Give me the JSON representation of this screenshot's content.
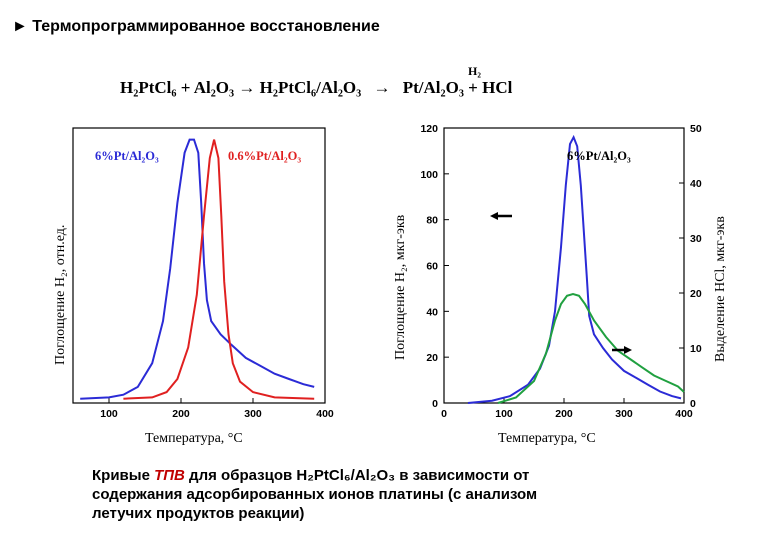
{
  "heading": "► Термопрограммированное восстановление",
  "equation": {
    "left": "H₂PtCl₆ + Al₂O₃ → H₂PtCl₆/Al₂O₃",
    "arrow": "→",
    "over_arrow": "H₂",
    "right": "Pt/Al₂O₃ + HCl"
  },
  "caption": {
    "line1_prefix": "Кривые ",
    "tpv": "ТПВ",
    "line1_suffix": " для образцов H₂PtCl₆/Al₂O₃ в зависимости от",
    "line2": "содержания адсорбированных ионов платины (с анализом",
    "line3": "летучих продуктов реакции)"
  },
  "chart_data": [
    {
      "type": "line",
      "xlabel": "Температура, °С",
      "ylabel": "Поглощение H₂, отн.ед.",
      "xlim": [
        50,
        400
      ],
      "x_ticks": [
        "100",
        "200",
        "300",
        "400"
      ],
      "y_ticks": [],
      "grid": false,
      "series": [
        {
          "name": "6%Pt/Al₂O₃",
          "color": "#2b2bd6",
          "points": [
            [
              60,
              0.5
            ],
            [
              100,
              1
            ],
            [
              120,
              2
            ],
            [
              140,
              5
            ],
            [
              160,
              14
            ],
            [
              175,
              30
            ],
            [
              185,
              50
            ],
            [
              195,
              75
            ],
            [
              205,
              94
            ],
            [
              212,
              99
            ],
            [
              218,
              99
            ],
            [
              224,
              94
            ],
            [
              228,
              75
            ],
            [
              232,
              52
            ],
            [
              236,
              38
            ],
            [
              242,
              30
            ],
            [
              255,
              25
            ],
            [
              270,
              21
            ],
            [
              290,
              16
            ],
            [
              310,
              13
            ],
            [
              330,
              10
            ],
            [
              350,
              8
            ],
            [
              370,
              6
            ],
            [
              385,
              5
            ]
          ]
        },
        {
          "name": "0.6%Pt/Al₂O₃",
          "color": "#e02020",
          "points": [
            [
              120,
              0.5
            ],
            [
              160,
              1
            ],
            [
              180,
              3
            ],
            [
              195,
              8
            ],
            [
              210,
              20
            ],
            [
              222,
              40
            ],
            [
              232,
              70
            ],
            [
              240,
              92
            ],
            [
              246,
              99
            ],
            [
              252,
              92
            ],
            [
              256,
              70
            ],
            [
              260,
              45
            ],
            [
              266,
              25
            ],
            [
              272,
              14
            ],
            [
              282,
              7
            ],
            [
              300,
              3
            ],
            [
              330,
              1
            ],
            [
              385,
              0.5
            ]
          ]
        }
      ]
    },
    {
      "type": "line",
      "xlabel": "Температура, °С",
      "ylabel": "Поглощение H₂, мкг-экв",
      "y2label": "Выделение HCl, мкг-экв",
      "xlim": [
        0,
        400
      ],
      "ylim": [
        0,
        120
      ],
      "y2lim": [
        0,
        50
      ],
      "x_ticks": [
        "0",
        "100",
        "200",
        "300",
        "400"
      ],
      "y_ticks": [
        "0",
        "20",
        "40",
        "60",
        "80",
        "100",
        "120"
      ],
      "y2_ticks": [
        "0",
        "10",
        "20",
        "30",
        "40",
        "50"
      ],
      "grid": false,
      "legend": "6%Pt/Al₂O₃",
      "series": [
        {
          "name": "6%Pt/Al₂O₃",
          "axis": "left",
          "color": "#2b2bd6",
          "points": [
            [
              40,
              0
            ],
            [
              80,
              1
            ],
            [
              110,
              3
            ],
            [
              140,
              8
            ],
            [
              160,
              15
            ],
            [
              175,
              25
            ],
            [
              185,
              40
            ],
            [
              195,
              68
            ],
            [
              203,
              95
            ],
            [
              210,
              113
            ],
            [
              216,
              116
            ],
            [
              222,
              112
            ],
            [
              228,
              95
            ],
            [
              233,
              75
            ],
            [
              238,
              55
            ],
            [
              242,
              38
            ],
            [
              250,
              30
            ],
            [
              265,
              24
            ],
            [
              280,
              19
            ],
            [
              300,
              14
            ],
            [
              320,
              11
            ],
            [
              340,
              8
            ],
            [
              360,
              5
            ],
            [
              380,
              3
            ],
            [
              395,
              2
            ]
          ]
        },
        {
          "name": "HCl",
          "axis": "right",
          "color": "#20a040",
          "points": [
            [
              90,
              0
            ],
            [
              120,
              1
            ],
            [
              150,
              4
            ],
            [
              170,
              9
            ],
            [
              185,
              15
            ],
            [
              195,
              18
            ],
            [
              205,
              19.5
            ],
            [
              215,
              19.8
            ],
            [
              225,
              19.5
            ],
            [
              235,
              18
            ],
            [
              250,
              15
            ],
            [
              270,
              12
            ],
            [
              290,
              9.5
            ],
            [
              310,
              8
            ],
            [
              330,
              6.5
            ],
            [
              350,
              5
            ],
            [
              370,
              4
            ],
            [
              390,
              3
            ],
            [
              400,
              2
            ]
          ]
        }
      ]
    }
  ]
}
